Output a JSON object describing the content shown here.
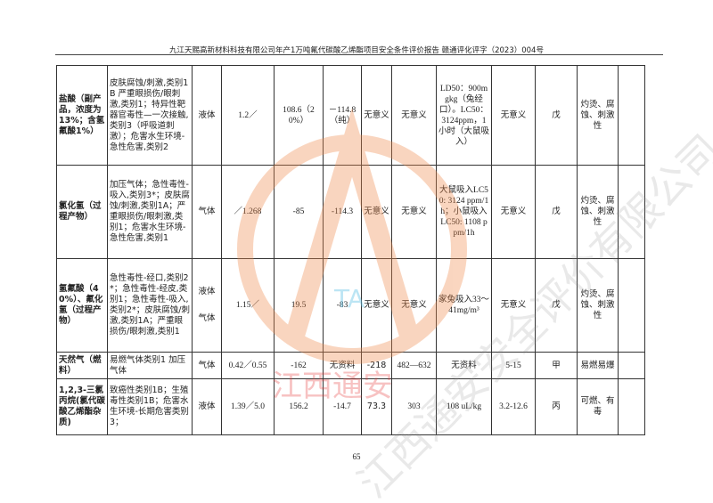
{
  "header": {
    "title": "九江天赐高新材料科技有限公司年产1万吨氟代碳酸乙烯酯项目安全条件评价报告  赣通评化评字（2023）004号"
  },
  "watermark": {
    "text": "江西通安",
    "logo_text": "TA",
    "gray_text": "江西通安安全评价有限公司"
  },
  "table": {
    "rows": [
      {
        "name": "盐酸（副产品，浓度为13%；含氢氟酸1%）",
        "hazard": "皮肤腐蚀/刺激,类别1B 严重眼损伤/眼刺激,类别1；特异性靶器官毒性—一次接触,类别3（呼吸道刺激）；危害水生环境-急性危害,类别2",
        "state": "液体",
        "density": "1.2／",
        "boiling": "108.6（20%）",
        "melting": "－114.8（纯）",
        "flash": "无意义",
        "ignition": "无意义",
        "toxicity": "LD50：900mgkg（兔经口）。LC50：3124ppm，1小时（大鼠吸入）",
        "explosion": "无意义",
        "fire_class": "戊",
        "danger": "灼烫、腐蚀、刺激性",
        "extra": ""
      },
      {
        "name": "氯化氢（过程产物）",
        "hazard": "加压气体；急性毒性-吸入,类别3*；皮肤腐蚀/刺激,类别1A；严重眼损伤/眼刺激,类别1；危害水生环境-急性危害,类别1",
        "state": "气体",
        "density": "／1.268",
        "boiling": "-85",
        "melting": "-114.3",
        "flash": "无意义",
        "ignition": "无意义",
        "toxicity": "大鼠吸入LC50: 3124 ppm/1h；小鼠吸入LC50: 1108 ppm/1h",
        "explosion": "无意义",
        "fire_class": "戊",
        "danger": "灼烫、腐蚀、刺激性",
        "extra": ""
      },
      {
        "name": "氢氟酸（40%）、氟化氢（过程产物）",
        "hazard": "急性毒性-经口,类别2*；急性毒性-经皮,类别1；急性毒性-吸入,类别2*；皮肤腐蚀/刺激,类别1A；严重眼损伤/眼刺激,类别1",
        "state": "液体",
        "state2": "气体",
        "density": "1.15／",
        "boiling": "19.5",
        "melting": "-83",
        "flash": "无意义",
        "ignition": "无意义",
        "toxicity": "家兔吸入33～41mg/m³",
        "explosion": "无意义",
        "fire_class": "戊",
        "danger": "灼烫、腐蚀、刺激性",
        "extra": ""
      },
      {
        "name": "天然气（燃料）",
        "hazard": "易燃气体类别1 加压气体",
        "state": "气体",
        "density": "0.42／0.55",
        "boiling": "-162",
        "melting": "无资料",
        "flash": "-218",
        "ignition": "482—632",
        "toxicity": "无资料",
        "explosion": "5-15",
        "fire_class": "甲",
        "danger": "易燃易爆",
        "extra": ""
      },
      {
        "name": "1,2,3-三氯丙烷(氯代碳酸乙烯酯杂质)",
        "hazard": "致癌性类别1B；生殖毒性类别1B；危害水生环境-长期危害类别3；",
        "state": "液体",
        "density": "1.39／5.0",
        "boiling": "156.2",
        "melting": "-14.7",
        "flash": "73.3",
        "ignition": "303",
        "toxicity": "108 uL/kg",
        "explosion": "3.2-12.6",
        "fire_class": "丙",
        "danger": "可燃、有毒",
        "extra": ""
      }
    ]
  },
  "footer": {
    "page_number": "65"
  },
  "colors": {
    "watermark_orange": "#f08a4b",
    "watermark_red": "#e83a3a",
    "watermark_blue": "#6cc6e8"
  }
}
